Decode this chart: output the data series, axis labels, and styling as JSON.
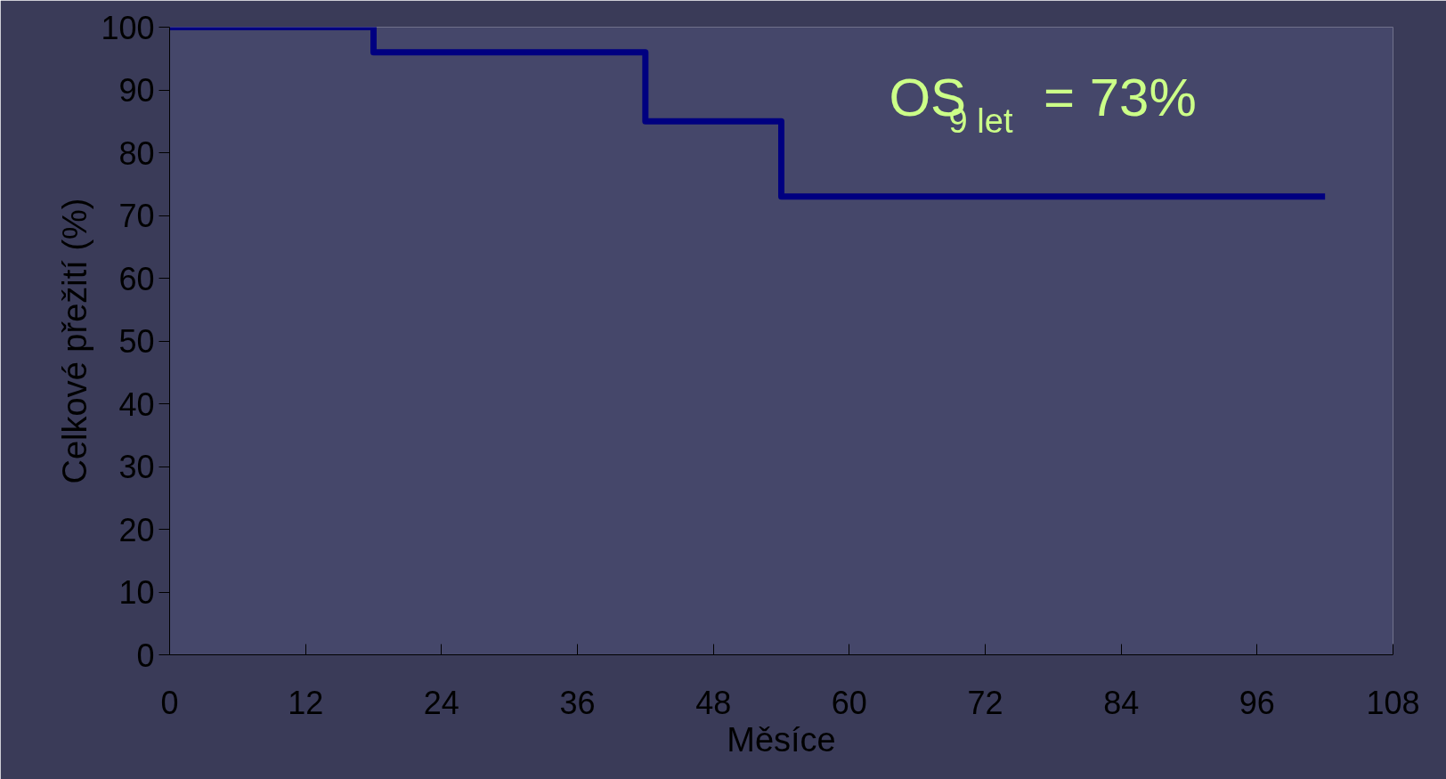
{
  "chart_data": {
    "type": "step",
    "xlabel": "Měsíce",
    "ylabel": "Celkové přežití (%)",
    "x": [
      0,
      18,
      42,
      54,
      102
    ],
    "series": [
      {
        "color": "#000080",
        "values": [
          100,
          96,
          85,
          73,
          73
        ]
      }
    ],
    "xlim": [
      0,
      108
    ],
    "xticks": [
      0,
      12,
      24,
      36,
      48,
      60,
      72,
      84,
      96,
      108
    ],
    "ylim": [
      0,
      100
    ],
    "yticks": [
      0,
      10,
      20,
      30,
      40,
      50,
      60,
      70,
      80,
      90,
      100
    ],
    "annotations": [
      "OS$_{9 let}$ = 73%"
    ],
    "grid": false,
    "marker": "none",
    "line_style": "solid"
  }
}
